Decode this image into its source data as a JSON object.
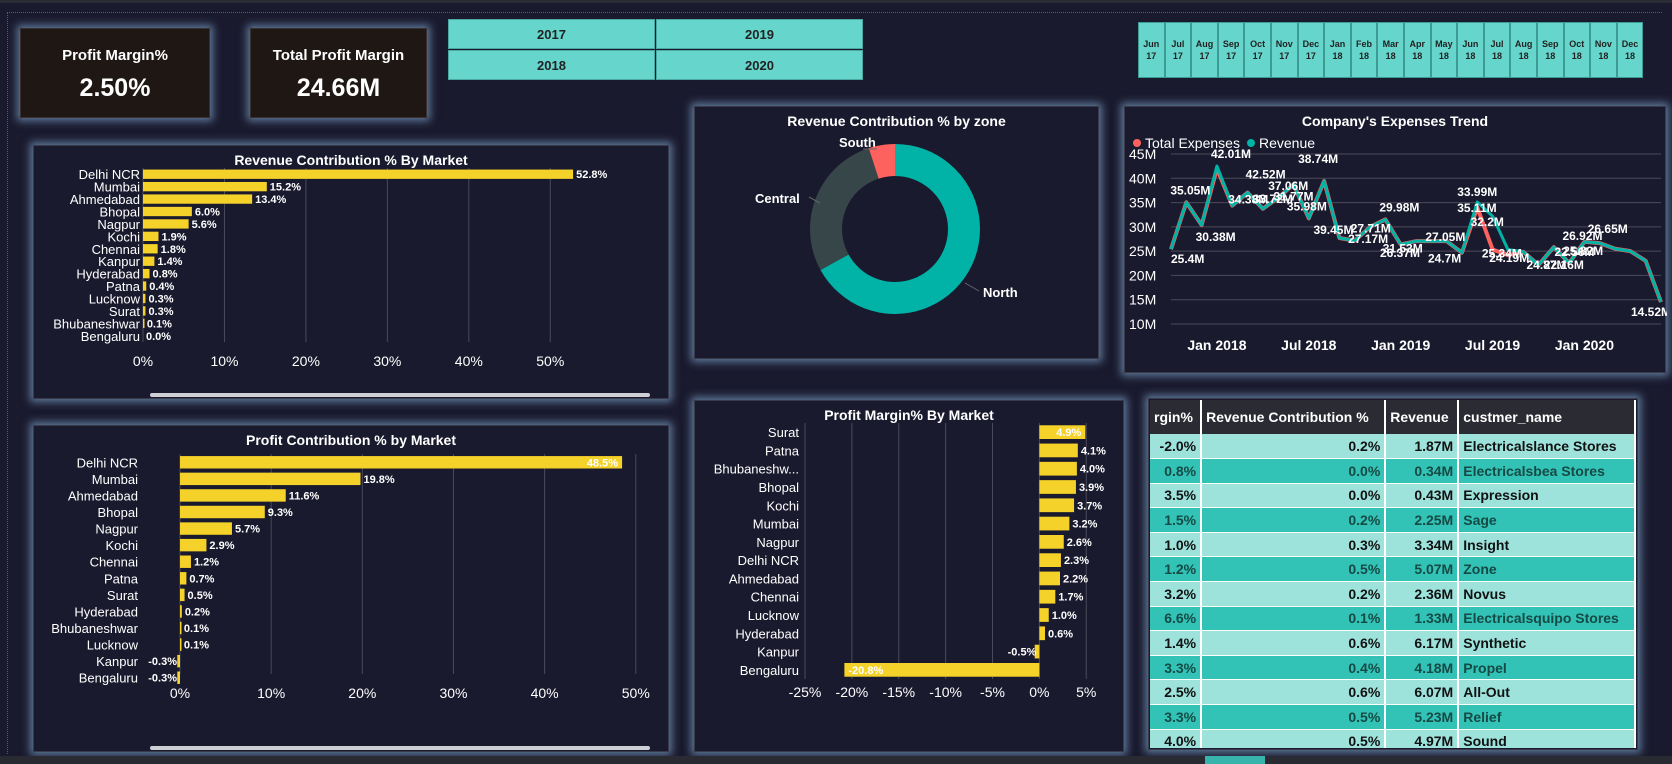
{
  "kpis": [
    {
      "label": "Profit Margin%",
      "value": "2.50%"
    },
    {
      "label": "Total Profit Margin",
      "value": "24.66M"
    }
  ],
  "year_slicer": [
    "2017",
    "2019",
    "2018",
    "2020"
  ],
  "month_slicer": [
    [
      "Jun",
      "17"
    ],
    [
      "Jul",
      "17"
    ],
    [
      "Aug",
      "17"
    ],
    [
      "Sep",
      "17"
    ],
    [
      "Oct",
      "17"
    ],
    [
      "Nov",
      "17"
    ],
    [
      "Dec",
      "17"
    ],
    [
      "Jan",
      "18"
    ],
    [
      "Feb",
      "18"
    ],
    [
      "Mar",
      "18"
    ],
    [
      "Apr",
      "18"
    ],
    [
      "May",
      "18"
    ],
    [
      "Jun",
      "18"
    ],
    [
      "Jul",
      "18"
    ],
    [
      "Aug",
      "18"
    ],
    [
      "Sep",
      "18"
    ],
    [
      "Oct",
      "18"
    ],
    [
      "Nov",
      "18"
    ],
    [
      "Dec",
      "18"
    ]
  ],
  "colors": {
    "bar": "#f5d22a",
    "teal": "#00b3a6",
    "red": "#fd625e",
    "grey": "#374649"
  },
  "revenue_by_zone": {
    "title": "Revenue Contribution % by zone",
    "labels": [
      "South",
      "Central",
      "North"
    ]
  },
  "expenses_trend": {
    "title": "Company's Expenses Trend",
    "legend": [
      "Total Expenses",
      "Revenue"
    ]
  },
  "table": {
    "headers": [
      "rgin%",
      "Revenue Contribution %",
      "Revenue",
      "custmer_name"
    ],
    "rows": [
      [
        "-2.0%",
        "0.2%",
        "1.87M",
        "Electricalslance Stores"
      ],
      [
        "0.8%",
        "0.0%",
        "0.34M",
        "Electricalsbea Stores"
      ],
      [
        "3.5%",
        "0.0%",
        "0.43M",
        "Expression"
      ],
      [
        "1.5%",
        "0.2%",
        "2.25M",
        "Sage"
      ],
      [
        "1.0%",
        "0.3%",
        "3.34M",
        "Insight"
      ],
      [
        "1.2%",
        "0.5%",
        "5.07M",
        "Zone"
      ],
      [
        "3.2%",
        "0.2%",
        "2.36M",
        "Novus"
      ],
      [
        "6.6%",
        "0.1%",
        "1.33M",
        "Electricalsquipo Stores"
      ],
      [
        "1.4%",
        "0.6%",
        "6.17M",
        "Synthetic"
      ],
      [
        "3.3%",
        "0.4%",
        "4.18M",
        "Propel"
      ],
      [
        "2.5%",
        "0.6%",
        "6.07M",
        "All-Out"
      ],
      [
        "3.3%",
        "0.5%",
        "5.23M",
        "Relief"
      ],
      [
        "4.0%",
        "0.5%",
        "4.97M",
        "Sound"
      ]
    ]
  },
  "chart_data": [
    {
      "id": "revenue-market",
      "type": "bar",
      "orientation": "horizontal",
      "title": "Revenue Contribution % By Market",
      "categories": [
        "Delhi NCR",
        "Mumbai",
        "Ahmedabad",
        "Bhopal",
        "Nagpur",
        "Kochi",
        "Chennai",
        "Kanpur",
        "Hyderabad",
        "Patna",
        "Lucknow",
        "Surat",
        "Bhubaneshwar",
        "Bengaluru"
      ],
      "values": [
        52.8,
        15.2,
        13.4,
        6.0,
        5.6,
        1.9,
        1.8,
        1.4,
        0.8,
        0.4,
        0.3,
        0.3,
        0.1,
        0.0
      ],
      "labels": [
        "52.8%",
        "15.2%",
        "13.4%",
        "6.0%",
        "5.6%",
        "1.9%",
        "1.8%",
        "1.4%",
        "0.8%",
        "0.4%",
        "0.3%",
        "0.3%",
        "0.1%",
        "0.0%"
      ],
      "xlim": [
        0,
        55
      ],
      "ticks": [
        0,
        10,
        20,
        30,
        40,
        50
      ],
      "tick_labels": [
        "0%",
        "10%",
        "20%",
        "30%",
        "40%",
        "50%"
      ]
    },
    {
      "id": "profit-contribution",
      "type": "bar",
      "orientation": "horizontal",
      "title": "Profit Contribution % by Market",
      "categories": [
        "Delhi NCR",
        "Mumbai",
        "Ahmedabad",
        "Bhopal",
        "Nagpur",
        "Kochi",
        "Chennai",
        "Patna",
        "Surat",
        "Hyderabad",
        "Bhubaneshwar",
        "Lucknow",
        "Kanpur",
        "Bengaluru"
      ],
      "values": [
        48.5,
        19.8,
        11.6,
        9.3,
        5.7,
        2.9,
        1.2,
        0.7,
        0.5,
        0.2,
        0.1,
        0.1,
        -0.3,
        -0.3
      ],
      "labels": [
        "48.5%",
        "19.8%",
        "11.6%",
        "9.3%",
        "5.7%",
        "2.9%",
        "1.2%",
        "0.7%",
        "0.5%",
        "0.2%",
        "0.1%",
        "0.1%",
        "-0.3%",
        "-0.3%"
      ],
      "xlim": [
        0,
        52
      ],
      "ticks": [
        0,
        10,
        20,
        30,
        40,
        50
      ],
      "tick_labels": [
        "0%",
        "10%",
        "20%",
        "30%",
        "40%",
        "50%"
      ]
    },
    {
      "id": "profit-margin-market",
      "type": "bar",
      "orientation": "horizontal",
      "title": "Profit Margin% By Market",
      "categories": [
        "Surat",
        "Patna",
        "Bhubaneshw...",
        "Bhopal",
        "Kochi",
        "Mumbai",
        "Nagpur",
        "Delhi NCR",
        "Ahmedabad",
        "Chennai",
        "Lucknow",
        "Hyderabad",
        "Kanpur",
        "Bengaluru"
      ],
      "values": [
        4.9,
        4.1,
        4.0,
        3.9,
        3.7,
        3.2,
        2.6,
        2.3,
        2.2,
        1.7,
        1.0,
        0.6,
        -0.5,
        -20.8
      ],
      "labels": [
        "4.9%",
        "4.1%",
        "4.0%",
        "3.9%",
        "3.7%",
        "3.2%",
        "2.6%",
        "2.3%",
        "2.2%",
        "1.7%",
        "1.0%",
        "0.6%",
        "-0.5%",
        "-20.8%"
      ],
      "xlim": [
        -25,
        7
      ],
      "ticks": [
        -25,
        -20,
        -15,
        -10,
        -5,
        0,
        5
      ],
      "tick_labels": [
        "-25%",
        "-20%",
        "-15%",
        "-10%",
        "-5%",
        "0%",
        "5%"
      ]
    },
    {
      "id": "zone-donut",
      "type": "pie",
      "title": "Revenue Contribution % by zone",
      "categories": [
        "North",
        "Central",
        "South"
      ],
      "values": [
        67,
        28,
        5
      ]
    },
    {
      "id": "expenses-trend",
      "type": "line",
      "title": "Company's Expenses Trend",
      "x_tick_labels": [
        "Jan 2018",
        "Jul 2018",
        "Jan 2019",
        "Jul 2019",
        "Jan 2020"
      ],
      "y_tick_labels": [
        "10M",
        "15M",
        "20M",
        "25M",
        "30M",
        "35M",
        "40M",
        "45M"
      ],
      "ylim": [
        10,
        45
      ],
      "x": [
        "2017-10",
        "2017-11",
        "2017-12",
        "2018-01",
        "2018-02",
        "2018-03",
        "2018-04",
        "2018-05",
        "2018-06",
        "2018-07",
        "2018-08",
        "2018-09",
        "2018-10",
        "2018-11",
        "2018-12",
        "2019-01",
        "2019-02",
        "2019-03",
        "2019-04",
        "2019-05",
        "2019-06",
        "2019-07",
        "2019-08",
        "2019-09",
        "2019-10",
        "2019-11",
        "2019-12",
        "2020-01",
        "2020-02",
        "2020-03",
        "2020-04",
        "2020-05",
        "2020-06"
      ],
      "series": [
        {
          "name": "Total Expenses",
          "values": [
            25.4,
            35.05,
            30.38,
            42.01,
            34.38,
            37.06,
            33.72,
            35.98,
            38.74,
            31.77,
            39.45,
            27.71,
            27.17,
            29.98,
            31.53,
            26.37,
            27.05,
            27.05,
            27.05,
            24.7,
            33.99,
            25.34,
            24.19,
            24.87,
            22.16,
            25.82,
            22.56,
            26.92,
            26.65,
            25.5,
            25.0,
            23.0,
            14.52
          ]
        },
        {
          "name": "Revenue",
          "values": [
            25.4,
            35.05,
            30.38,
            42.52,
            34.38,
            37.06,
            33.72,
            35.98,
            38.74,
            31.77,
            39.45,
            27.71,
            27.17,
            29.98,
            31.53,
            26.37,
            27.05,
            27.05,
            27.05,
            24.7,
            35.11,
            32.2,
            25.34,
            24.87,
            22.16,
            25.82,
            22.56,
            26.92,
            26.65,
            25.5,
            25.0,
            23.0,
            14.52
          ]
        }
      ],
      "point_labels": [
        "25.4M",
        "35.05M",
        "30.38M",
        "42.01M",
        "34.38M",
        "42.52M",
        "33.72M",
        "37.06M",
        "31.77M",
        "35.98M",
        "38.74M",
        "39.45M",
        "27.71M",
        "27.17M",
        "29.98M",
        "31.53M",
        "26.37M",
        "27.05M",
        "24.7M",
        "33.99M",
        "35.11M",
        "32.2M",
        "25.34M",
        "24.19M",
        "24.87M",
        "22.16M",
        "25.82M",
        "22.56M",
        "26.92M",
        "26.65M",
        "14.52M"
      ]
    }
  ]
}
